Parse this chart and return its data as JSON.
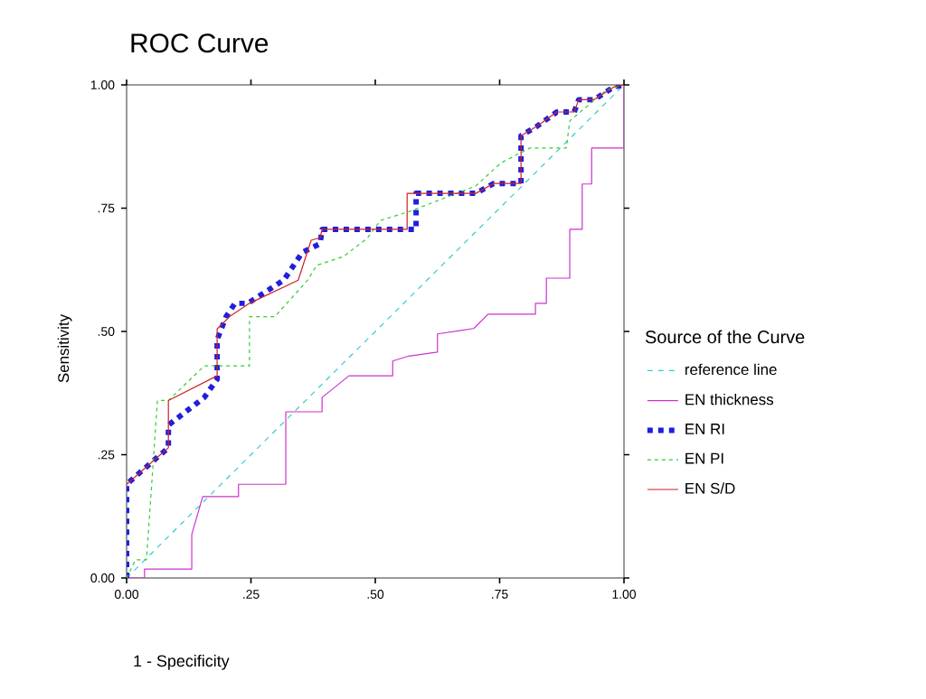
{
  "chart_data": {
    "type": "line",
    "title": "ROC Curve",
    "xlabel": "1 - Specificity",
    "ylabel": "Sensitivity",
    "legend_title": "Source of the Curve",
    "legend": "right",
    "grid": false,
    "marker": "none",
    "xlim": [
      0,
      1
    ],
    "ylim": [
      0,
      1
    ],
    "xticks": [
      {
        "value": 0,
        "label": "0.00"
      },
      {
        "value": 0.25,
        "label": ".25"
      },
      {
        "value": 0.5,
        "label": ".50"
      },
      {
        "value": 0.75,
        "label": ".75"
      },
      {
        "value": 1,
        "label": "1.00"
      }
    ],
    "yticks": [
      {
        "value": 0,
        "label": "0.00"
      },
      {
        "value": 0.25,
        "label": ".25"
      },
      {
        "value": 0.5,
        "label": ".50"
      },
      {
        "value": 0.75,
        "label": ".75"
      },
      {
        "value": 1,
        "label": "1.00"
      }
    ],
    "series": [
      {
        "name": "reference line",
        "color": "#33cccc",
        "line_style": "dashed",
        "x": [
          0,
          1
        ],
        "values": [
          0,
          1
        ]
      },
      {
        "name": "EN thickness",
        "color": "#cc33cc",
        "line_style": "solid",
        "x": [
          0,
          0.036,
          0.036,
          0.131,
          0.131,
          0.153,
          0.225,
          0.225,
          0.32,
          0.32,
          0.393,
          0.393,
          0.447,
          0.535,
          0.535,
          0.567,
          0.625,
          0.625,
          0.698,
          0.727,
          0.822,
          0.822,
          0.844,
          0.844,
          0.891,
          0.891,
          0.916,
          0.916,
          0.935,
          0.935,
          1,
          1
        ],
        "values": [
          0,
          0,
          0.018,
          0.018,
          0.088,
          0.165,
          0.165,
          0.19,
          0.19,
          0.337,
          0.337,
          0.366,
          0.41,
          0.41,
          0.44,
          0.45,
          0.458,
          0.495,
          0.506,
          0.535,
          0.535,
          0.557,
          0.557,
          0.608,
          0.608,
          0.707,
          0.707,
          0.799,
          0.799,
          0.872,
          0.872,
          1
        ]
      },
      {
        "name": "EN RI",
        "color": "#1f1fdd",
        "line_style": "dashed",
        "x": [
          0,
          0,
          0.062,
          0.084,
          0.084,
          0.156,
          0.182,
          0.182,
          0.2,
          0.218,
          0.244,
          0.316,
          0.353,
          0.389,
          0.393,
          0.582,
          0.582,
          0.702,
          0.738,
          0.793,
          0.793,
          0.825,
          0.865,
          0.9,
          0.909,
          0.94,
          0.98,
          1
        ],
        "values": [
          0,
          0.19,
          0.245,
          0.264,
          0.31,
          0.366,
          0.403,
          0.483,
          0.53,
          0.557,
          0.557,
          0.604,
          0.66,
          0.678,
          0.707,
          0.707,
          0.78,
          0.78,
          0.8,
          0.8,
          0.897,
          0.916,
          0.945,
          0.945,
          0.97,
          0.97,
          0.996,
          1
        ]
      },
      {
        "name": "EN PI",
        "color": "#33cc33",
        "line_style": "dotted",
        "x": [
          0,
          0.018,
          0.04,
          0.062,
          0.084,
          0.156,
          0.247,
          0.247,
          0.298,
          0.364,
          0.382,
          0.436,
          0.484,
          0.51,
          0.571,
          0.702,
          0.753,
          0.811,
          0.884,
          0.891,
          0.964,
          1
        ],
        "values": [
          0,
          0.037,
          0.037,
          0.36,
          0.36,
          0.43,
          0.43,
          0.53,
          0.53,
          0.604,
          0.634,
          0.652,
          0.689,
          0.725,
          0.744,
          0.795,
          0.842,
          0.872,
          0.872,
          0.927,
          0.989,
          1
        ]
      },
      {
        "name": "EN S/D",
        "color": "#cc2222",
        "line_style": "solid",
        "x": [
          0,
          0.062,
          0.084,
          0.084,
          0.182,
          0.182,
          0.207,
          0.247,
          0.345,
          0.371,
          0.389,
          0.393,
          0.564,
          0.564,
          0.702,
          0.738,
          0.793,
          0.793,
          0.825,
          0.865,
          0.9,
          0.909,
          0.94,
          0.98,
          1
        ],
        "values": [
          0.19,
          0.245,
          0.264,
          0.36,
          0.41,
          0.505,
          0.53,
          0.557,
          0.604,
          0.685,
          0.69,
          0.707,
          0.707,
          0.78,
          0.78,
          0.8,
          0.8,
          0.897,
          0.916,
          0.945,
          0.945,
          0.97,
          0.97,
          0.996,
          1
        ]
      }
    ]
  }
}
